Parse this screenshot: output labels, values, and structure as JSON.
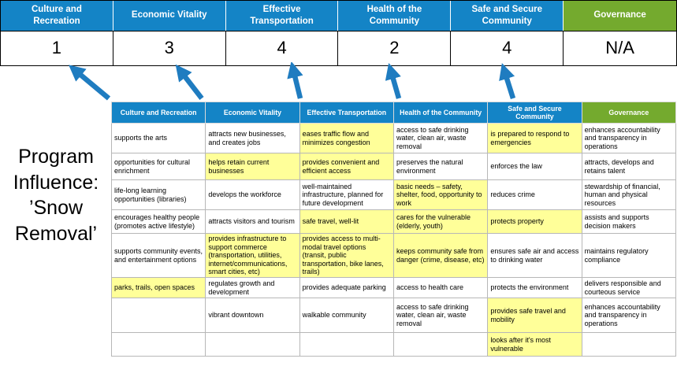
{
  "title": "Program Influence: ’Snow Removal’",
  "colors": {
    "blue": "#1484c6",
    "green": "#74aa2e",
    "yellow": "#ffff99",
    "arrow": "#1f7cc0"
  },
  "scoreboard": {
    "columns": [
      {
        "label": "Culture and Recreation",
        "score": "1"
      },
      {
        "label": "Economic Vitality",
        "score": "3"
      },
      {
        "label": "Effective Transportation",
        "score": "4"
      },
      {
        "label": "Health of the Community",
        "score": "2"
      },
      {
        "label": "Safe and Secure Community",
        "score": "4"
      },
      {
        "label": "Governance",
        "score": "N/A"
      }
    ]
  },
  "matrix": {
    "headers": [
      "Culture and Recreation",
      "Economic Vitality",
      "Effective Transportation",
      "Health of the Community",
      "Safe and Secure Community",
      "Governance"
    ],
    "rows": [
      [
        {
          "t": "supports the arts",
          "h": false
        },
        {
          "t": "attracts new businesses, and creates jobs",
          "h": false
        },
        {
          "t": "eases traffic flow and minimizes congestion",
          "h": true
        },
        {
          "t": "access to safe drinking water, clean air, waste removal",
          "h": false
        },
        {
          "t": "is prepared to respond to emergencies",
          "h": true
        },
        {
          "t": "enhances accountability and transparency in operations",
          "h": false
        }
      ],
      [
        {
          "t": "opportunities for cultural enrichment",
          "h": false
        },
        {
          "t": "helps retain current businesses",
          "h": true
        },
        {
          "t": "provides convenient and efficient access",
          "h": true
        },
        {
          "t": "preserves the natural environment",
          "h": false
        },
        {
          "t": "enforces the law",
          "h": false
        },
        {
          "t": "attracts, develops and retains talent",
          "h": false
        }
      ],
      [
        {
          "t": "life-long learning opportunities (libraries)",
          "h": false
        },
        {
          "t": "develops the workforce",
          "h": false
        },
        {
          "t": "well-maintained infrastructure, planned for future development",
          "h": false
        },
        {
          "t": "basic needs – safety, shelter, food, opportunity to work",
          "h": true
        },
        {
          "t": "reduces crime",
          "h": false
        },
        {
          "t": "stewardship of financial, human and physical resources",
          "h": false
        }
      ],
      [
        {
          "t": "encourages healthy people (promotes active lifestyle)",
          "h": false
        },
        {
          "t": "attracts visitors and tourism",
          "h": false
        },
        {
          "t": "safe travel, well-lit",
          "h": true
        },
        {
          "t": "cares for the vulnerable (elderly, youth)",
          "h": true
        },
        {
          "t": "protects property",
          "h": true
        },
        {
          "t": "assists and supports decision makers",
          "h": false
        }
      ],
      [
        {
          "t": "supports community events, and entertainment options",
          "h": false
        },
        {
          "t": "provides infrastructure to support commerce (transportation, utilities, internet/communications, smart cities, etc)",
          "h": true
        },
        {
          "t": "provides access to multi-modal travel options (transit, public transportation, bike lanes, trails)",
          "h": true
        },
        {
          "t": "keeps community safe from danger (crime, disease, etc)",
          "h": true
        },
        {
          "t": "ensures safe air and access to drinking water",
          "h": false
        },
        {
          "t": "maintains regulatory compliance",
          "h": false
        }
      ],
      [
        {
          "t": "parks, trails, open spaces",
          "h": true
        },
        {
          "t": "regulates growth and development",
          "h": false
        },
        {
          "t": "provides adequate parking",
          "h": false
        },
        {
          "t": "access to health care",
          "h": false
        },
        {
          "t": "protects the environment",
          "h": false
        },
        {
          "t": "delivers responsible and courteous service",
          "h": false
        }
      ],
      [
        {
          "t": "",
          "h": false
        },
        {
          "t": "vibrant downtown",
          "h": false
        },
        {
          "t": "walkable community",
          "h": false
        },
        {
          "t": "access to safe drinking water, clean air, waste removal",
          "h": false
        },
        {
          "t": "provides safe travel and mobility",
          "h": true
        },
        {
          "t": "enhances accountability and transparency in operations",
          "h": false
        }
      ],
      [
        {
          "t": "",
          "h": false
        },
        {
          "t": "",
          "h": false
        },
        {
          "t": "",
          "h": false
        },
        {
          "t": "",
          "h": false
        },
        {
          "t": "looks after it's most vulnerable",
          "h": true
        },
        {
          "t": "",
          "h": false
        }
      ]
    ]
  }
}
